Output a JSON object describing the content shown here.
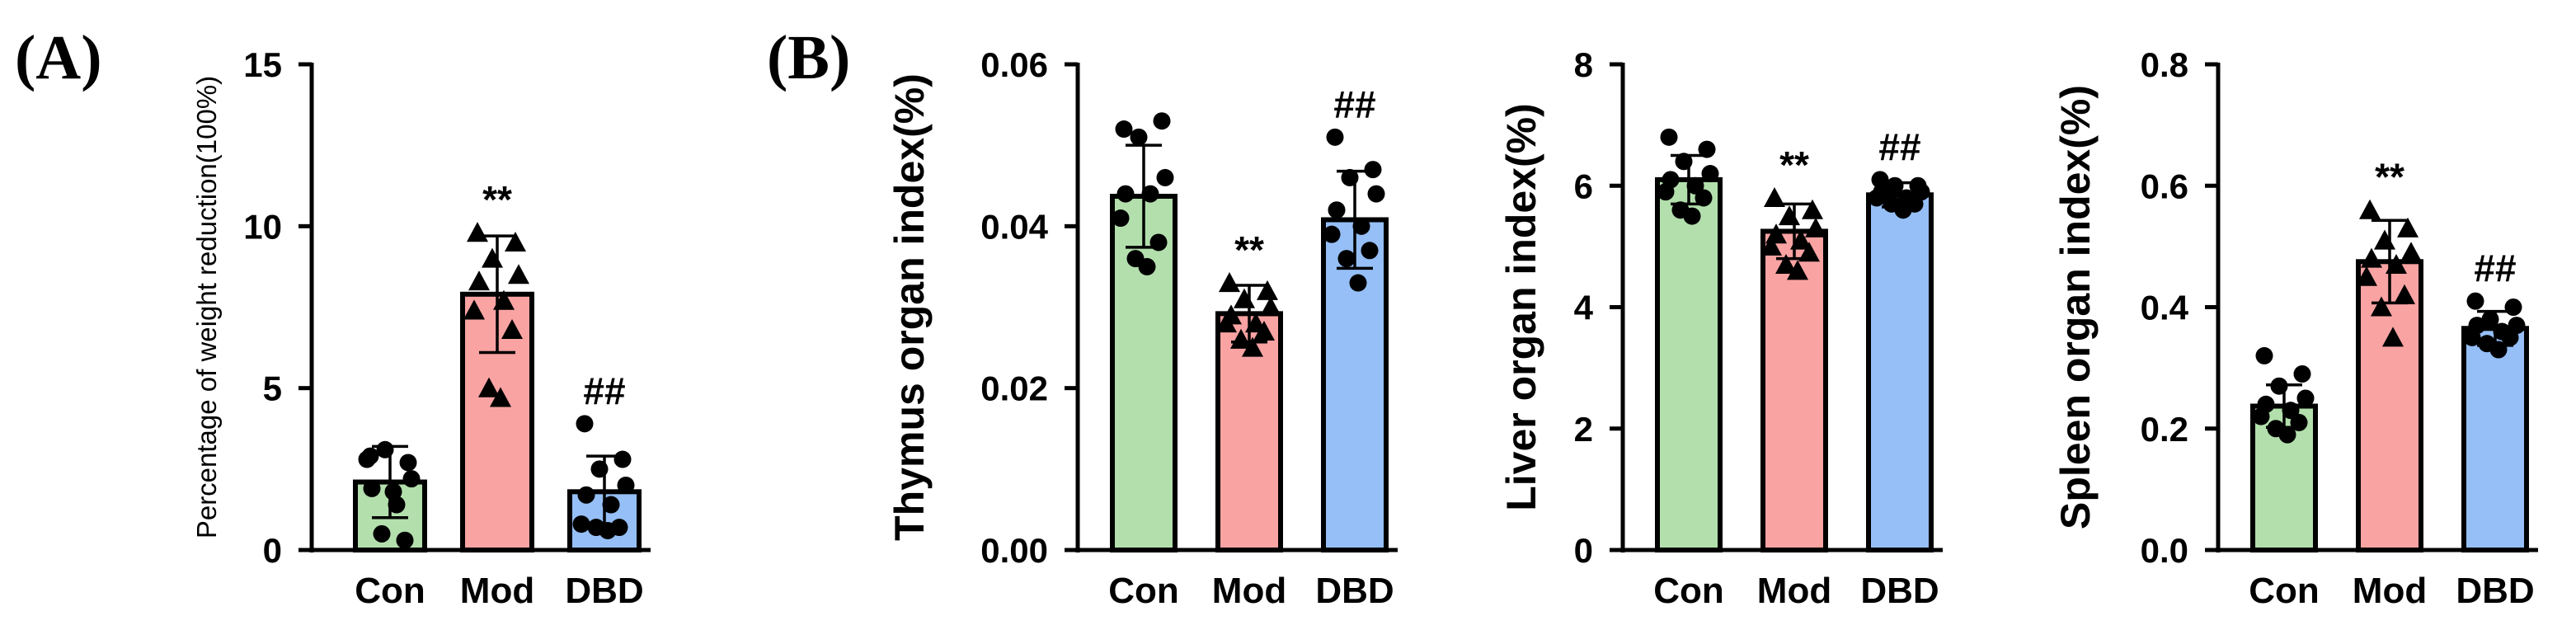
{
  "figure": {
    "panel_a_label": "(A)",
    "panel_b_label": "(B)"
  },
  "chart_data": [
    {
      "type": "bar",
      "id": "weight-reduction",
      "ylabel": "Percentage of weight reduction(100%)",
      "ylim": [
        0,
        15
      ],
      "yticks": [
        0,
        5,
        10,
        15
      ],
      "ytick_labels": [
        "0",
        "5",
        "10",
        "15"
      ],
      "categories": [
        "Con",
        "Mod",
        "DBD"
      ],
      "values": [
        2.1,
        7.9,
        1.8
      ],
      "errors": [
        1.1,
        1.8,
        1.1
      ],
      "colors": [
        "#b3dfad",
        "#f9a3a3",
        "#95bff6"
      ],
      "markers": [
        "circle",
        "triangle",
        "circle"
      ],
      "annotations": [
        "",
        "**",
        "##"
      ],
      "points": [
        [
          2.9,
          2.7,
          3.1,
          2.2,
          1.9,
          1.4,
          2.8,
          0.3,
          0.5,
          1.8
        ],
        [
          9.8,
          9.5,
          9.0,
          8.5,
          8.3,
          7.7,
          7.4,
          6.8,
          5.0,
          4.7
        ],
        [
          3.9,
          2.8,
          2.5,
          2.0,
          1.7,
          1.4,
          0.8,
          0.7,
          0.7,
          0.6
        ]
      ]
    },
    {
      "type": "bar",
      "id": "thymus-index",
      "ylabel": "Thymus organ index(%)",
      "ylim": [
        0,
        0.06
      ],
      "yticks": [
        0,
        0.02,
        0.04,
        0.06
      ],
      "ytick_labels": [
        "0.00",
        "0.02",
        "0.04",
        "0.06"
      ],
      "categories": [
        "Con",
        "Mod",
        "DBD"
      ],
      "values": [
        0.0437,
        0.0292,
        0.0408
      ],
      "errors": [
        0.0063,
        0.0035,
        0.006
      ],
      "colors": [
        "#b3dfad",
        "#f9a3a3",
        "#95bff6"
      ],
      "markers": [
        "circle",
        "triangle",
        "circle"
      ],
      "annotations": [
        "",
        "**",
        "##"
      ],
      "points": [
        [
          0.052,
          0.053,
          0.051,
          0.046,
          0.044,
          0.044,
          0.041,
          0.038,
          0.036,
          0.035
        ],
        [
          0.033,
          0.032,
          0.031,
          0.03,
          0.029,
          0.028,
          0.028,
          0.027,
          0.026,
          0.025
        ],
        [
          0.051,
          0.047,
          0.046,
          0.044,
          0.042,
          0.04,
          0.039,
          0.037,
          0.036,
          0.033
        ]
      ]
    },
    {
      "type": "bar",
      "id": "liver-index",
      "ylabel": "Liver organ index(%)",
      "ylim": [
        0,
        8
      ],
      "yticks": [
        0,
        2,
        4,
        6,
        8
      ],
      "ytick_labels": [
        "0",
        "2",
        "4",
        "6",
        "8"
      ],
      "categories": [
        "Con",
        "Mod",
        "DBD"
      ],
      "values": [
        6.1,
        5.25,
        5.85
      ],
      "errors": [
        0.4,
        0.45,
        0.2
      ],
      "colors": [
        "#b3dfad",
        "#f9a3a3",
        "#95bff6"
      ],
      "markers": [
        "circle",
        "triangle",
        "circle"
      ],
      "annotations": [
        "",
        "**",
        "##"
      ],
      "points": [
        [
          6.8,
          6.6,
          6.4,
          6.2,
          6.1,
          6.0,
          5.9,
          5.8,
          5.6,
          5.5
        ],
        [
          5.8,
          5.6,
          5.5,
          5.3,
          5.2,
          5.1,
          5.0,
          4.9,
          4.7,
          4.6
        ],
        [
          6.1,
          6.0,
          6.0,
          5.9,
          5.9,
          5.8,
          5.8,
          5.7,
          5.7,
          5.6
        ]
      ]
    },
    {
      "type": "bar",
      "id": "spleen-index",
      "ylabel": "Spleen organ index(%)",
      "ylim": [
        0,
        0.8
      ],
      "yticks": [
        0,
        0.2,
        0.4,
        0.6,
        0.8
      ],
      "ytick_labels": [
        "0.0",
        "0.2",
        "0.4",
        "0.6",
        "0.8"
      ],
      "categories": [
        "Con",
        "Mod",
        "DBD"
      ],
      "values": [
        0.237,
        0.475,
        0.365
      ],
      "errors": [
        0.035,
        0.068,
        0.028
      ],
      "colors": [
        "#b3dfad",
        "#f9a3a3",
        "#95bff6"
      ],
      "markers": [
        "circle",
        "triangle",
        "circle"
      ],
      "annotations": [
        "",
        "**",
        "##"
      ],
      "points": [
        [
          0.32,
          0.29,
          0.27,
          0.25,
          0.24,
          0.23,
          0.22,
          0.21,
          0.2,
          0.19
        ],
        [
          0.56,
          0.53,
          0.51,
          0.49,
          0.48,
          0.47,
          0.45,
          0.42,
          0.4,
          0.35
        ],
        [
          0.41,
          0.4,
          0.38,
          0.37,
          0.37,
          0.36,
          0.35,
          0.35,
          0.34,
          0.33
        ]
      ]
    }
  ]
}
